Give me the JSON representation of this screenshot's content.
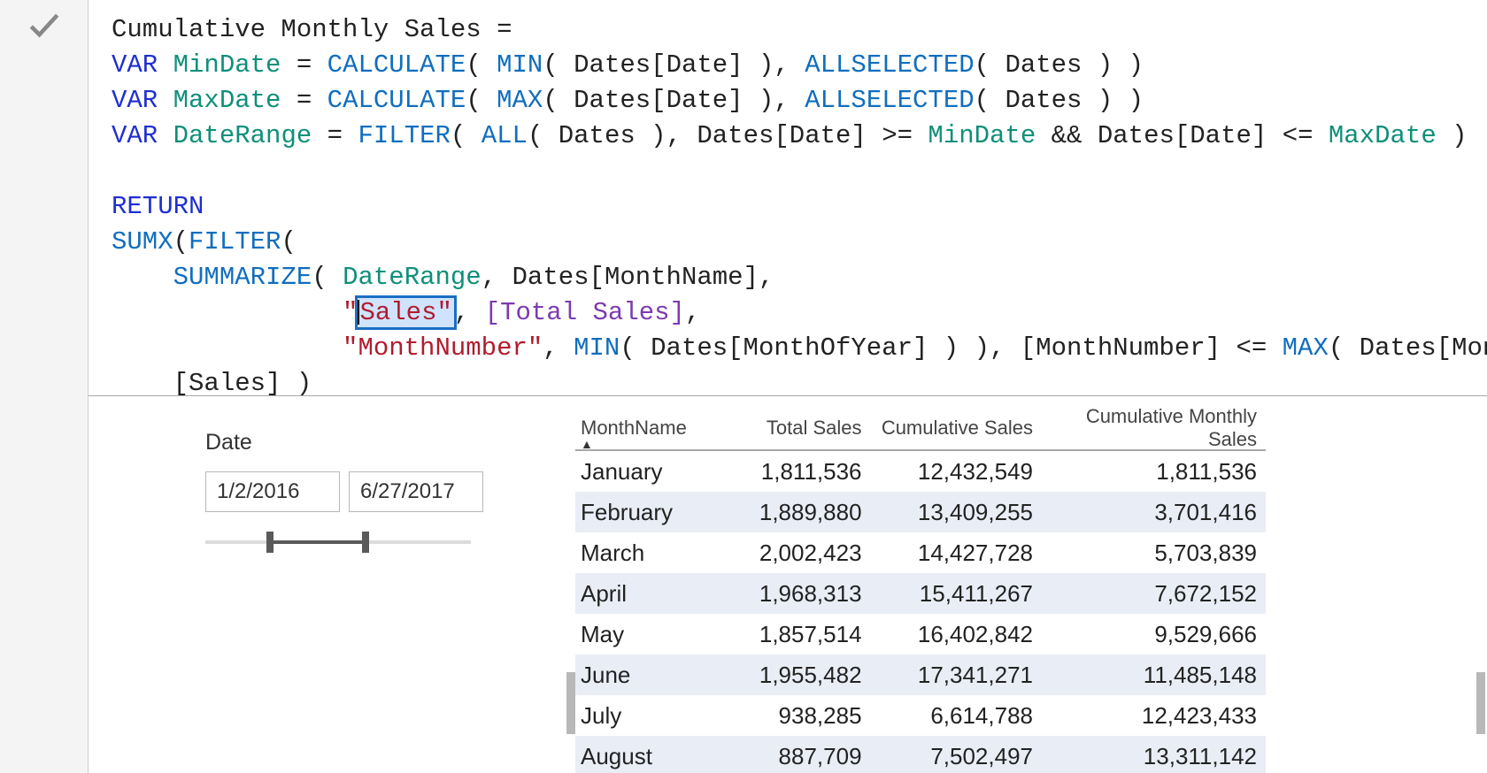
{
  "colors": {
    "keyword": "#1f2fd1",
    "function": "#106ebe",
    "identifier": "#0f8f7a",
    "string": "#b01c2e",
    "measure": "#7b3ab1",
    "plain": "#222222",
    "selection_bg": "#cfe3ff",
    "selection_border": "#1b6ec2",
    "gutter_bg": "#f4f4f4",
    "alt_row_bg": "#e9edf6",
    "slider_track": "#dcdcdc",
    "slider_fill": "#5a5a5a"
  },
  "heading_fragment": "Cum",
  "formula": {
    "line1": {
      "a": "Cumulative Monthly Sales = "
    },
    "line2": {
      "a": "VAR",
      "b": " ",
      "c": "MinDate",
      "d": " = ",
      "e": "CALCULATE",
      "f": "( ",
      "g": "MIN",
      "h": "( Dates[Date] ), ",
      "i": "ALLSELECTED",
      "j": "( Dates ) )"
    },
    "line3": {
      "a": "VAR",
      "b": " ",
      "c": "MaxDate",
      "d": " = ",
      "e": "CALCULATE",
      "f": "( ",
      "g": "MAX",
      "h": "( Dates[Date] ), ",
      "i": "ALLSELECTED",
      "j": "( Dates ) )"
    },
    "line4": {
      "a": "VAR",
      "b": " ",
      "c": "DateRange",
      "d": " = ",
      "e": "FILTER",
      "f": "( ",
      "g": "ALL",
      "h": "( Dates ), Dates[Date] >= ",
      "i": "MinDate",
      "j": " && Dates[Date] <= ",
      "k": "MaxDate",
      "l": " )"
    },
    "line6": {
      "a": "RETURN"
    },
    "line7": {
      "a": "SUMX",
      "b": "(",
      "c": "FILTER",
      "d": "("
    },
    "line8": {
      "pad": "    ",
      "a": "SUMMARIZE",
      "b": "( ",
      "c": "DateRange",
      "d": ", Dates[MonthName],"
    },
    "line9": {
      "pad": "               ",
      "q1": "\"",
      "sel": "Sales\"",
      "d": ", ",
      "m": "[Total Sales]",
      "e": ","
    },
    "line10": {
      "pad": "               ",
      "a": "\"MonthNumber\"",
      "b": ", ",
      "c": "MIN",
      "d": "( Dates[MonthOfYear] ) ), [MonthNumber] <= ",
      "e": "MAX",
      "f": "( Dates[MonthOfYear] ) ),"
    },
    "line11": {
      "pad": "    ",
      "a": "[Sales] )"
    }
  },
  "slicer": {
    "title": "Date",
    "from": "1/2/2016",
    "to": "6/27/2017",
    "fill_left_pct": 23,
    "fill_width_pct": 36
  },
  "table": {
    "columns": [
      "MonthName",
      "Total Sales",
      "Cumulative Sales",
      "Cumulative Monthly Sales"
    ],
    "sort_indicator": "▲",
    "rows": [
      [
        "January",
        "1,811,536",
        "12,432,549",
        "1,811,536"
      ],
      [
        "February",
        "1,889,880",
        "13,409,255",
        "3,701,416"
      ],
      [
        "March",
        "2,002,423",
        "14,427,728",
        "5,703,839"
      ],
      [
        "April",
        "1,968,313",
        "15,411,267",
        "7,672,152"
      ],
      [
        "May",
        "1,857,514",
        "16,402,842",
        "9,529,666"
      ],
      [
        "June",
        "1,955,482",
        "17,341,271",
        "11,485,148"
      ],
      [
        "July",
        "938,285",
        "6,614,788",
        "12,423,433"
      ],
      [
        "August",
        "887,709",
        "7,502,497",
        "13,311,142"
      ]
    ]
  }
}
